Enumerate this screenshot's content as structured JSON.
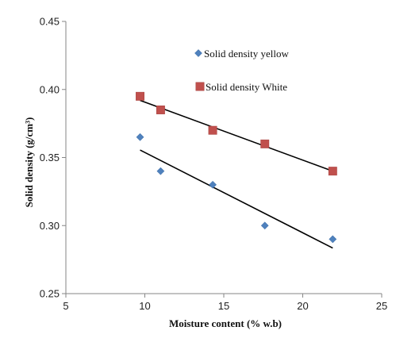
{
  "chart_data": {
    "type": "scatter",
    "title": "",
    "xlabel": "Moisture content (% w.b)",
    "ylabel": "Solid density (g/cm³)",
    "xlim": [
      5,
      25
    ],
    "ylim": [
      0.25,
      0.45
    ],
    "x_ticks": [
      5,
      10,
      15,
      20,
      25
    ],
    "x_tick_labels": [
      "5",
      "10",
      "15",
      "20",
      "25"
    ],
    "y_ticks": [
      0.25,
      0.3,
      0.35,
      0.4,
      0.45
    ],
    "y_tick_labels": [
      "0.25",
      "0.30",
      "0.35",
      "0.40",
      "0.45"
    ],
    "grid": false,
    "legend_position": "top-center",
    "series": [
      {
        "name": "Solid density yellow",
        "marker": "diamond",
        "color": "#4F81BD",
        "x": [
          9.7,
          11.0,
          14.3,
          17.6,
          21.9
        ],
        "y": [
          0.365,
          0.34,
          0.33,
          0.3,
          0.29
        ],
        "trendline": {
          "x": [
            9.7,
            21.9
          ],
          "y": [
            0.3555,
            0.2835
          ]
        }
      },
      {
        "name": "Solid density White",
        "marker": "square",
        "color": "#C0504D",
        "x": [
          9.7,
          11.0,
          14.3,
          17.6,
          21.9
        ],
        "y": [
          0.395,
          0.385,
          0.37,
          0.36,
          0.34
        ],
        "trendline": {
          "x": [
            9.7,
            21.9
          ],
          "y": [
            0.392,
            0.34
          ]
        }
      }
    ]
  }
}
